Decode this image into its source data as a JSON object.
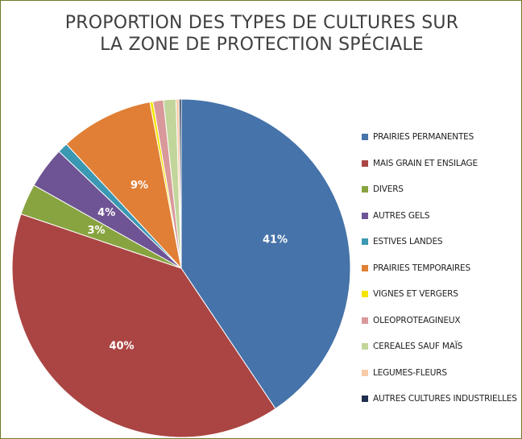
{
  "chart_data": {
    "type": "pie",
    "title_lines": [
      "PROPORTION DES TYPES DE CULTURES SUR",
      "LA ZONE DE PROTECTION SPÉCIALE"
    ],
    "slices": [
      {
        "name": "PRAIRIES PERMANENTES",
        "value": 41,
        "label": "41%",
        "color": "#4673a9"
      },
      {
        "name": "MAIS GRAIN ET ENSILAGE",
        "value": 40,
        "label": "40%",
        "color": "#aa4543"
      },
      {
        "name": "DIVERS",
        "value": 3,
        "label": "3%",
        "color": "#88a440"
      },
      {
        "name": "AUTRES GELS",
        "value": 4,
        "label": "4%",
        "color": "#6e5494"
      },
      {
        "name": "ESTIVES LANDES",
        "value": 1,
        "label": "",
        "color": "#3b98b2"
      },
      {
        "name": "PRAIRIES TEMPORAIRES",
        "value": 9,
        "label": "9%",
        "color": "#e07f35"
      },
      {
        "name": "VIGNES ET VERGERS",
        "value": 0.3,
        "label": "",
        "color": "#f5e400"
      },
      {
        "name": "OLEOPROTEAGINEUX",
        "value": 1,
        "label": "",
        "color": "#d9999a"
      },
      {
        "name": "CEREALES SAUF MAÏS",
        "value": 1.2,
        "label": "",
        "color": "#c2d69b"
      },
      {
        "name": "LEGUMES-FLEURS",
        "value": 0.3,
        "label": "",
        "color": "#f8cba9"
      },
      {
        "name": "AUTRES CULTURES INDUSTRIELLES",
        "value": 0.2,
        "label": "",
        "color": "#1f2f4e"
      }
    ],
    "legend_position": "right"
  }
}
